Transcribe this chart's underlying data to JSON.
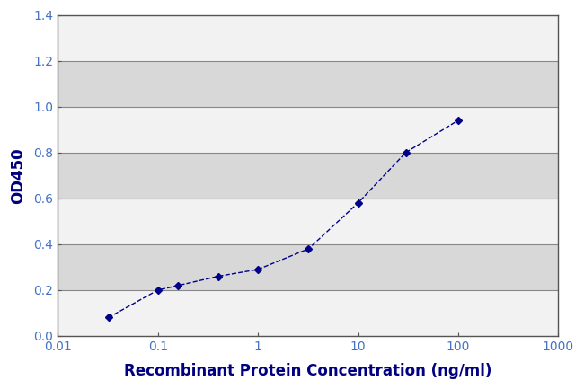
{
  "x": [
    0.032,
    0.1,
    0.16,
    0.4,
    1.0,
    3.2,
    10.0,
    30.0,
    100.0
  ],
  "y": [
    0.08,
    0.2,
    0.22,
    0.26,
    0.29,
    0.38,
    0.58,
    0.8,
    0.94
  ],
  "line_color": "#00008B",
  "marker": "D",
  "marker_size": 4,
  "line_style": "--",
  "line_width": 1.0,
  "xlabel": "Recombinant Protein Concentration (ng/ml)",
  "ylabel": "OD450",
  "xlim": [
    0.01,
    1000
  ],
  "ylim": [
    0.0,
    1.4
  ],
  "yticks": [
    0.0,
    0.2,
    0.4,
    0.6,
    0.8,
    1.0,
    1.2,
    1.4
  ],
  "xtick_labels": [
    "0.01",
    "0.1",
    "1",
    "10",
    "100",
    "1000"
  ],
  "xtick_values": [
    0.01,
    0.1,
    1,
    10,
    100,
    1000
  ],
  "background_color": "#ffffff",
  "plot_bg_color": "#e8e8e8",
  "band_color_light": "#f2f2f2",
  "band_color_dark": "#d8d8d8",
  "xlabel_fontsize": 12,
  "ylabel_fontsize": 12,
  "tick_fontsize": 10,
  "tick_color": "#4472c4",
  "label_color": "#000080",
  "grid_color": "#888888",
  "grid_linewidth": 0.8,
  "spine_color": "#555555",
  "spine_linewidth": 1.0
}
